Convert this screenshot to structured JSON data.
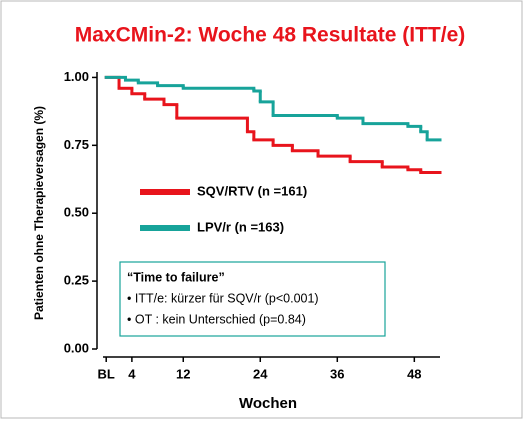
{
  "chart_data": {
    "type": "line",
    "step": true,
    "title": "MaxCMin-2: Woche 48 Resultate (ITT/e)",
    "xlabel": "Wochen",
    "ylabel": "Patienten ohne Therapieversagen (%)",
    "xlim": [
      -0.5,
      52
    ],
    "ylim": [
      0,
      1.02
    ],
    "xticks": [
      {
        "value": 0,
        "label": "BL"
      },
      4,
      12,
      24,
      36,
      48
    ],
    "yticks": [
      {
        "value": 0,
        "label": "0.00"
      },
      {
        "value": 0.25,
        "label": "0.25"
      },
      {
        "value": 0.5,
        "label": "0.50"
      },
      {
        "value": 0.75,
        "label": "0.75"
      },
      {
        "value": 1,
        "label": "1.00"
      }
    ],
    "series": [
      {
        "name": "SQV/RTV (n =161)",
        "color": "#e8141c",
        "x": [
          0,
          2,
          4,
          6,
          9,
          11,
          22,
          23,
          26,
          29,
          33,
          38,
          43,
          47,
          49
        ],
        "values": [
          1.0,
          0.96,
          0.94,
          0.92,
          0.9,
          0.85,
          0.8,
          0.77,
          0.75,
          0.73,
          0.71,
          0.69,
          0.67,
          0.66,
          0.65
        ]
      },
      {
        "name": "LPV/r (n =163)",
        "color": "#17a39a",
        "x": [
          0,
          3,
          5,
          8,
          12,
          23,
          24,
          26,
          36,
          40,
          47,
          49,
          50
        ],
        "values": [
          1.0,
          0.99,
          0.98,
          0.97,
          0.96,
          0.95,
          0.91,
          0.86,
          0.85,
          0.83,
          0.82,
          0.8,
          0.77
        ]
      }
    ],
    "annotation": [
      "“Time to failure”",
      "• ITT/e: kürzer für SQV/r (p<0.001)",
      "• OT :   kein Unterschied (p=0.84)"
    ]
  }
}
